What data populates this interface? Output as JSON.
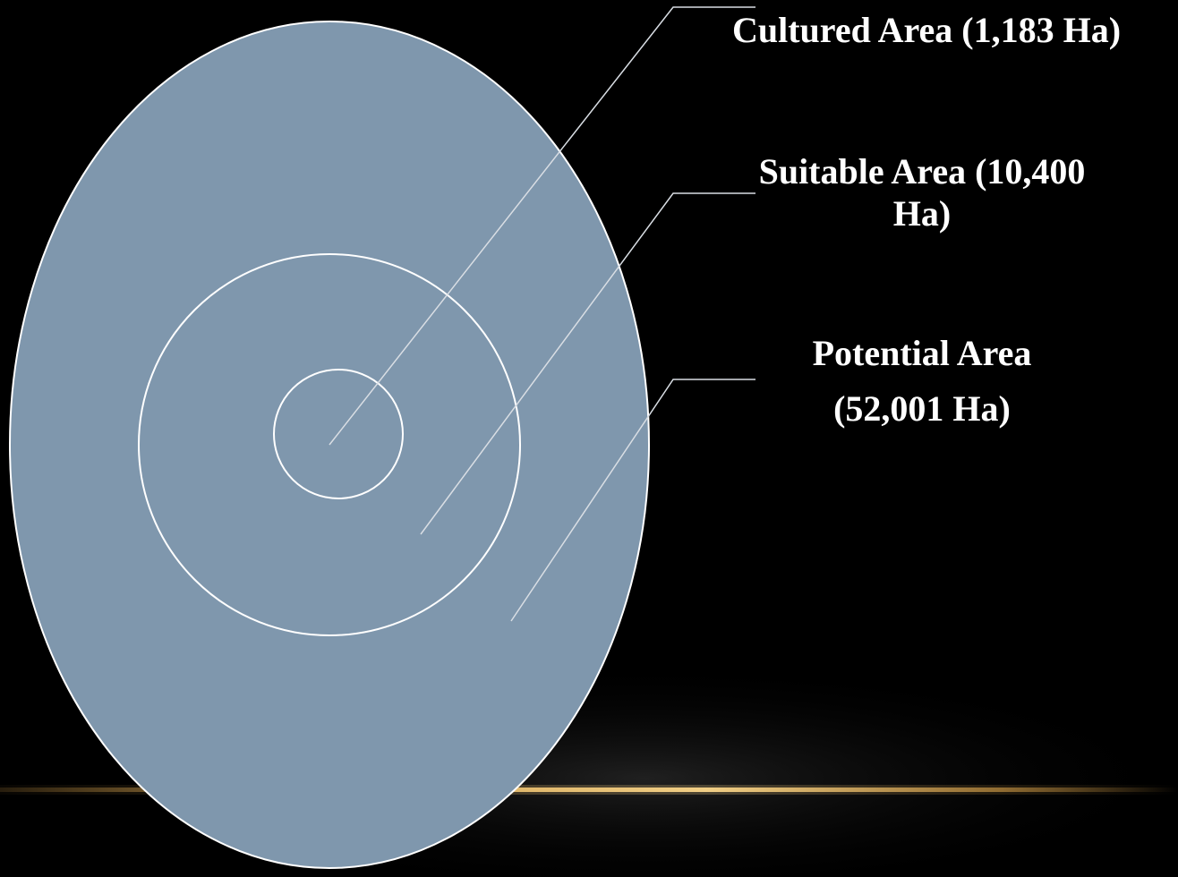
{
  "diagram": {
    "colors": {
      "background": "#000000",
      "ellipse_fill": "#7f97ad",
      "outline": "#ffffff",
      "horizon_glow": "#d9a24a",
      "text": "#ffffff"
    },
    "labels": {
      "cultured": "Cultured Area (1,183 Ha)",
      "suitable_line1": "Suitable Area (10,400",
      "suitable_line2": "Ha)",
      "potential_line1": "Potential Area",
      "potential_line2": "(52,001 Ha)"
    }
  }
}
